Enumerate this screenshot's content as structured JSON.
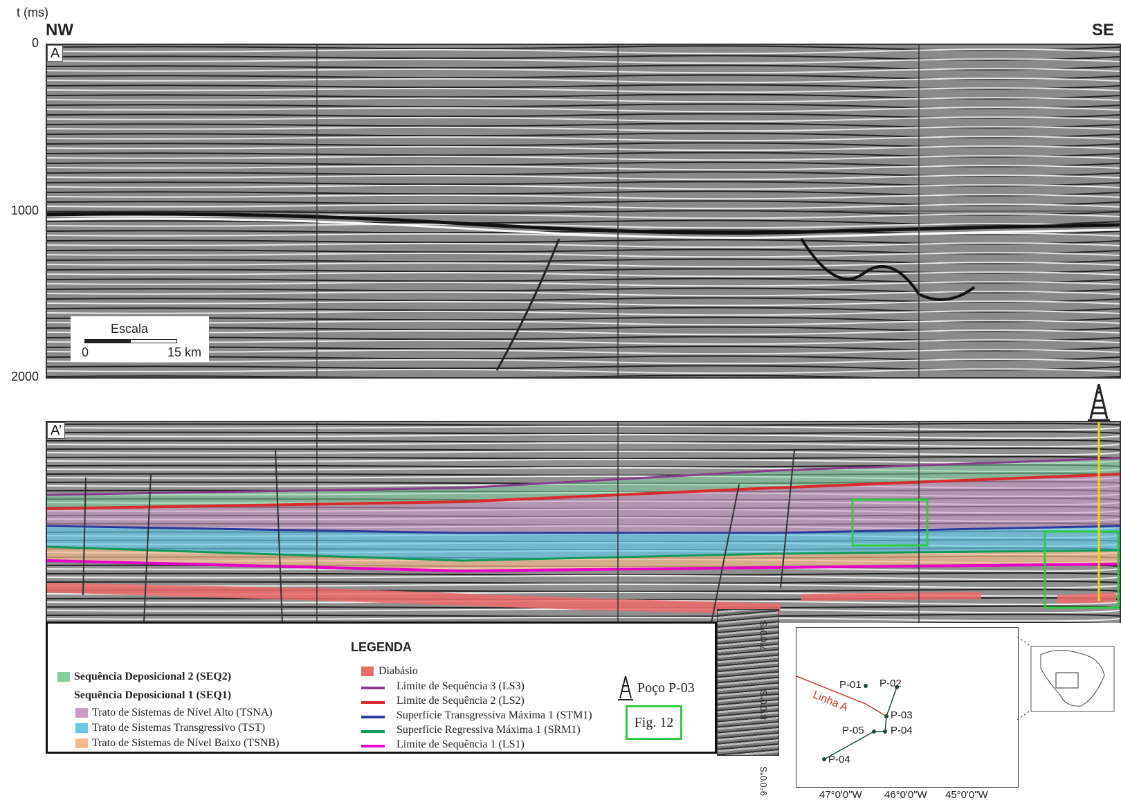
{
  "axis": {
    "unit_label": "t (ms)",
    "ticks": [
      "0",
      "1000",
      "2000"
    ]
  },
  "directions": {
    "left": "NW",
    "right": "SE"
  },
  "panel_top": {
    "label": "A"
  },
  "panel_bottom": {
    "label": "A’"
  },
  "scale": {
    "title": "Escala",
    "start": "0",
    "end": "15 km"
  },
  "legend": {
    "title": "LEGENDA",
    "seq2": "Sequência Deposicional 2 (SEQ2)",
    "seq1": "Sequência Deposicional 1 (SEQ1)",
    "tsna": "Trato de Sistemas de Nível Alto (TSNA)",
    "tst": "Trato de Sistemas Transgressivo (TST)",
    "tsnb": "Trato de Sistemas de Nível Baixo (TSNB)",
    "diabasio": "Diabásio",
    "ls3": "Limite de Sequência 3 (LS3)",
    "ls2": "Limite de Sequência 2 (LS2)",
    "stm1": "Superfície Transgressiva Máxima 1 (STM1)",
    "srm1": "Superfície Regressiva Máxima 1 (SRM1)",
    "ls1": "Limite de Sequência 1 (LS1)",
    "well": "Poço P-03",
    "fig": "Fig. 12",
    "colors": {
      "seq2": "#7fcf9f",
      "tsna": "#c99bc4",
      "tst": "#67c8e6",
      "tsnb": "#f3b98c",
      "diabasio": "#ee6b6b",
      "ls3": "#8b3b8e",
      "ls2": "#d92b2b",
      "stm1": "#2b3a9e",
      "srm1": "#0f9a5a",
      "ls1": "#e600c8",
      "fig_box": "#2ecc40",
      "well_line": "#f2d600"
    }
  },
  "map": {
    "line_label": "Linha A",
    "wells": [
      "P-01",
      "P-02",
      "P-03",
      "P-05",
      "P-04",
      "P-04"
    ],
    "lat_labels": [
      "7°0'0\"S",
      "8°0'0\"S",
      "9°0'0\"S"
    ],
    "lon_labels": [
      "47°0'0\"W",
      "46°0'0\"W",
      "45°0'0\"W"
    ]
  }
}
